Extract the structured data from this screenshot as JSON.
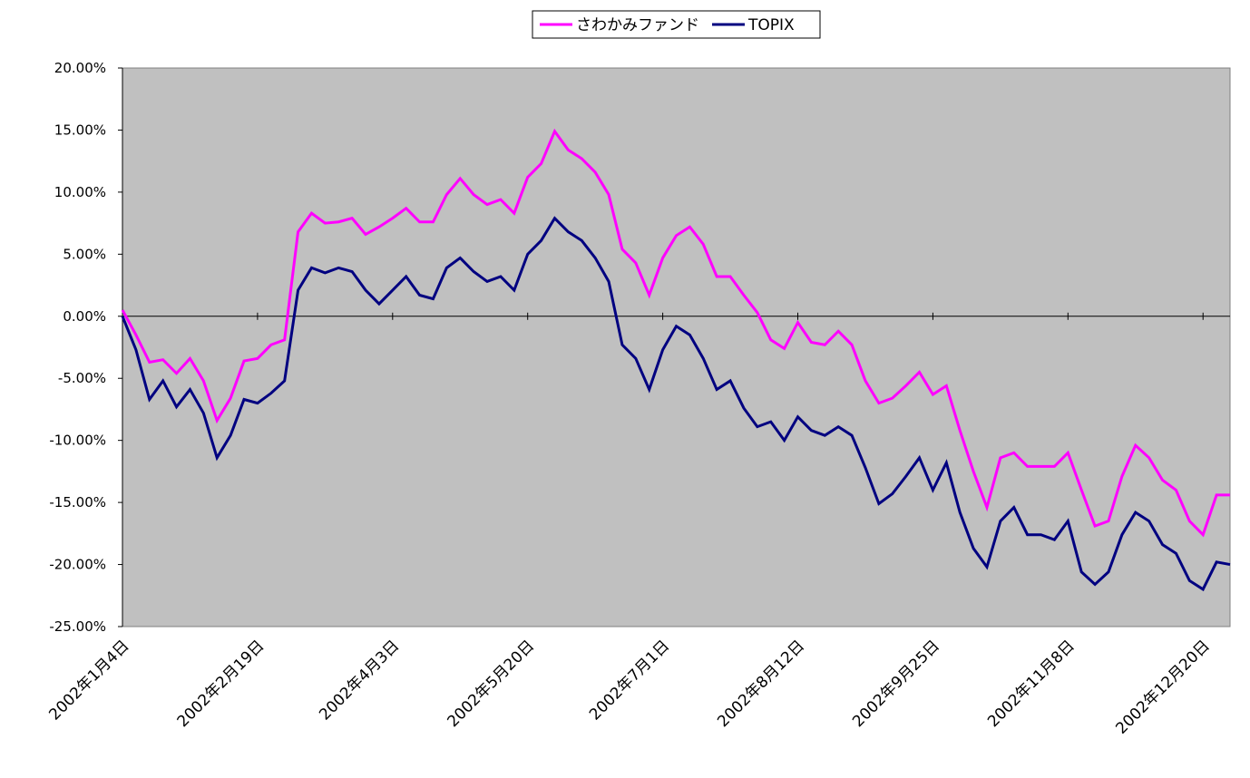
{
  "chart_data": {
    "type": "line",
    "categories": [
      "2002年1月4日",
      null,
      null,
      null,
      null,
      null,
      null,
      null,
      null,
      null,
      "2002年2月19日",
      null,
      null,
      null,
      null,
      null,
      null,
      null,
      null,
      null,
      "2002年4月3日",
      null,
      null,
      null,
      null,
      null,
      null,
      null,
      null,
      null,
      "2002年5月20日",
      null,
      null,
      null,
      null,
      null,
      null,
      null,
      null,
      null,
      "2002年7月1日",
      null,
      null,
      null,
      null,
      null,
      null,
      null,
      null,
      null,
      "2002年8月12日",
      null,
      null,
      null,
      null,
      null,
      null,
      null,
      null,
      null,
      "2002年9月25日",
      null,
      null,
      null,
      null,
      null,
      null,
      null,
      null,
      null,
      "2002年11月8日",
      null,
      null,
      null,
      null,
      null,
      null,
      null,
      null,
      null,
      "2002年12月20日",
      null,
      null
    ],
    "series": [
      {
        "name": "さわかみファンド",
        "color": "#ff00ff",
        "values": [
          0.5,
          -1.5,
          -3.7,
          -3.5,
          -4.6,
          -3.4,
          -5.2,
          -8.4,
          -6.6,
          -3.6,
          -3.4,
          -2.3,
          -1.9,
          6.8,
          8.3,
          7.5,
          7.6,
          7.9,
          6.6,
          7.2,
          7.9,
          8.7,
          7.6,
          7.6,
          9.8,
          11.1,
          9.8,
          9.0,
          9.4,
          8.3,
          11.2,
          12.3,
          14.9,
          13.4,
          12.7,
          11.6,
          9.8,
          5.4,
          4.3,
          1.7,
          4.7,
          6.5,
          7.2,
          5.8,
          3.2,
          3.2,
          1.7,
          0.3,
          -1.9,
          -2.6,
          -0.5,
          -2.1,
          -2.3,
          -1.2,
          -2.3,
          -5.2,
          -7.0,
          -6.6,
          -5.6,
          -4.5,
          -6.3,
          -5.6,
          -9.2,
          -12.5,
          -15.4,
          -11.4,
          -11.0,
          -12.1,
          -12.1,
          -12.1,
          -11.0,
          -14.0,
          -16.9,
          -16.5,
          -12.9,
          -10.4,
          -11.4,
          -13.2,
          -14.0,
          -16.5,
          -17.6,
          -14.4,
          -14.4
        ]
      },
      {
        "name": "TOPIX",
        "color": "#000080",
        "values": [
          0,
          -2.7,
          -6.7,
          -5.2,
          -7.3,
          -5.9,
          -7.8,
          -11.4,
          -9.6,
          -6.7,
          -7.0,
          -6.2,
          -5.2,
          2.1,
          3.9,
          3.5,
          3.9,
          3.6,
          2.1,
          1.0,
          2.1,
          3.2,
          1.7,
          1.4,
          3.9,
          4.7,
          3.6,
          2.8,
          3.2,
          2.1,
          5.0,
          6.1,
          7.9,
          6.8,
          6.1,
          4.7,
          2.8,
          -2.3,
          -3.4,
          -5.9,
          -2.7,
          -0.8,
          -1.5,
          -3.4,
          -5.9,
          -5.2,
          -7.4,
          -8.9,
          -8.5,
          -10.0,
          -8.1,
          -9.2,
          -9.6,
          -8.9,
          -9.6,
          -12.2,
          -15.1,
          -14.3,
          -12.9,
          -11.4,
          -14.0,
          -11.8,
          -15.8,
          -18.7,
          -20.2,
          -16.5,
          -15.4,
          -17.6,
          -17.6,
          -18.0,
          -16.5,
          -20.6,
          -21.6,
          -20.6,
          -17.6,
          -15.8,
          -16.5,
          -18.4,
          -19.1,
          -21.3,
          -22.0,
          -19.8,
          -20.0
        ]
      }
    ],
    "ylim": [
      -25,
      20
    ],
    "yticks": [
      {
        "value": -25,
        "label": "-25.00%"
      },
      {
        "value": -20,
        "label": "-20.00%"
      },
      {
        "value": -15,
        "label": "-15.00%"
      },
      {
        "value": -10,
        "label": "-10.00%"
      },
      {
        "value": -5,
        "label": "-5.00%"
      },
      {
        "value": 0,
        "label": "0.00%"
      },
      {
        "value": 5,
        "label": "5.00%"
      },
      {
        "value": 10,
        "label": "10.00%"
      },
      {
        "value": 15,
        "label": "15.00%"
      },
      {
        "value": 20,
        "label": "20.00%"
      }
    ],
    "legend": "top",
    "plot_background": "#c0c0c0"
  }
}
